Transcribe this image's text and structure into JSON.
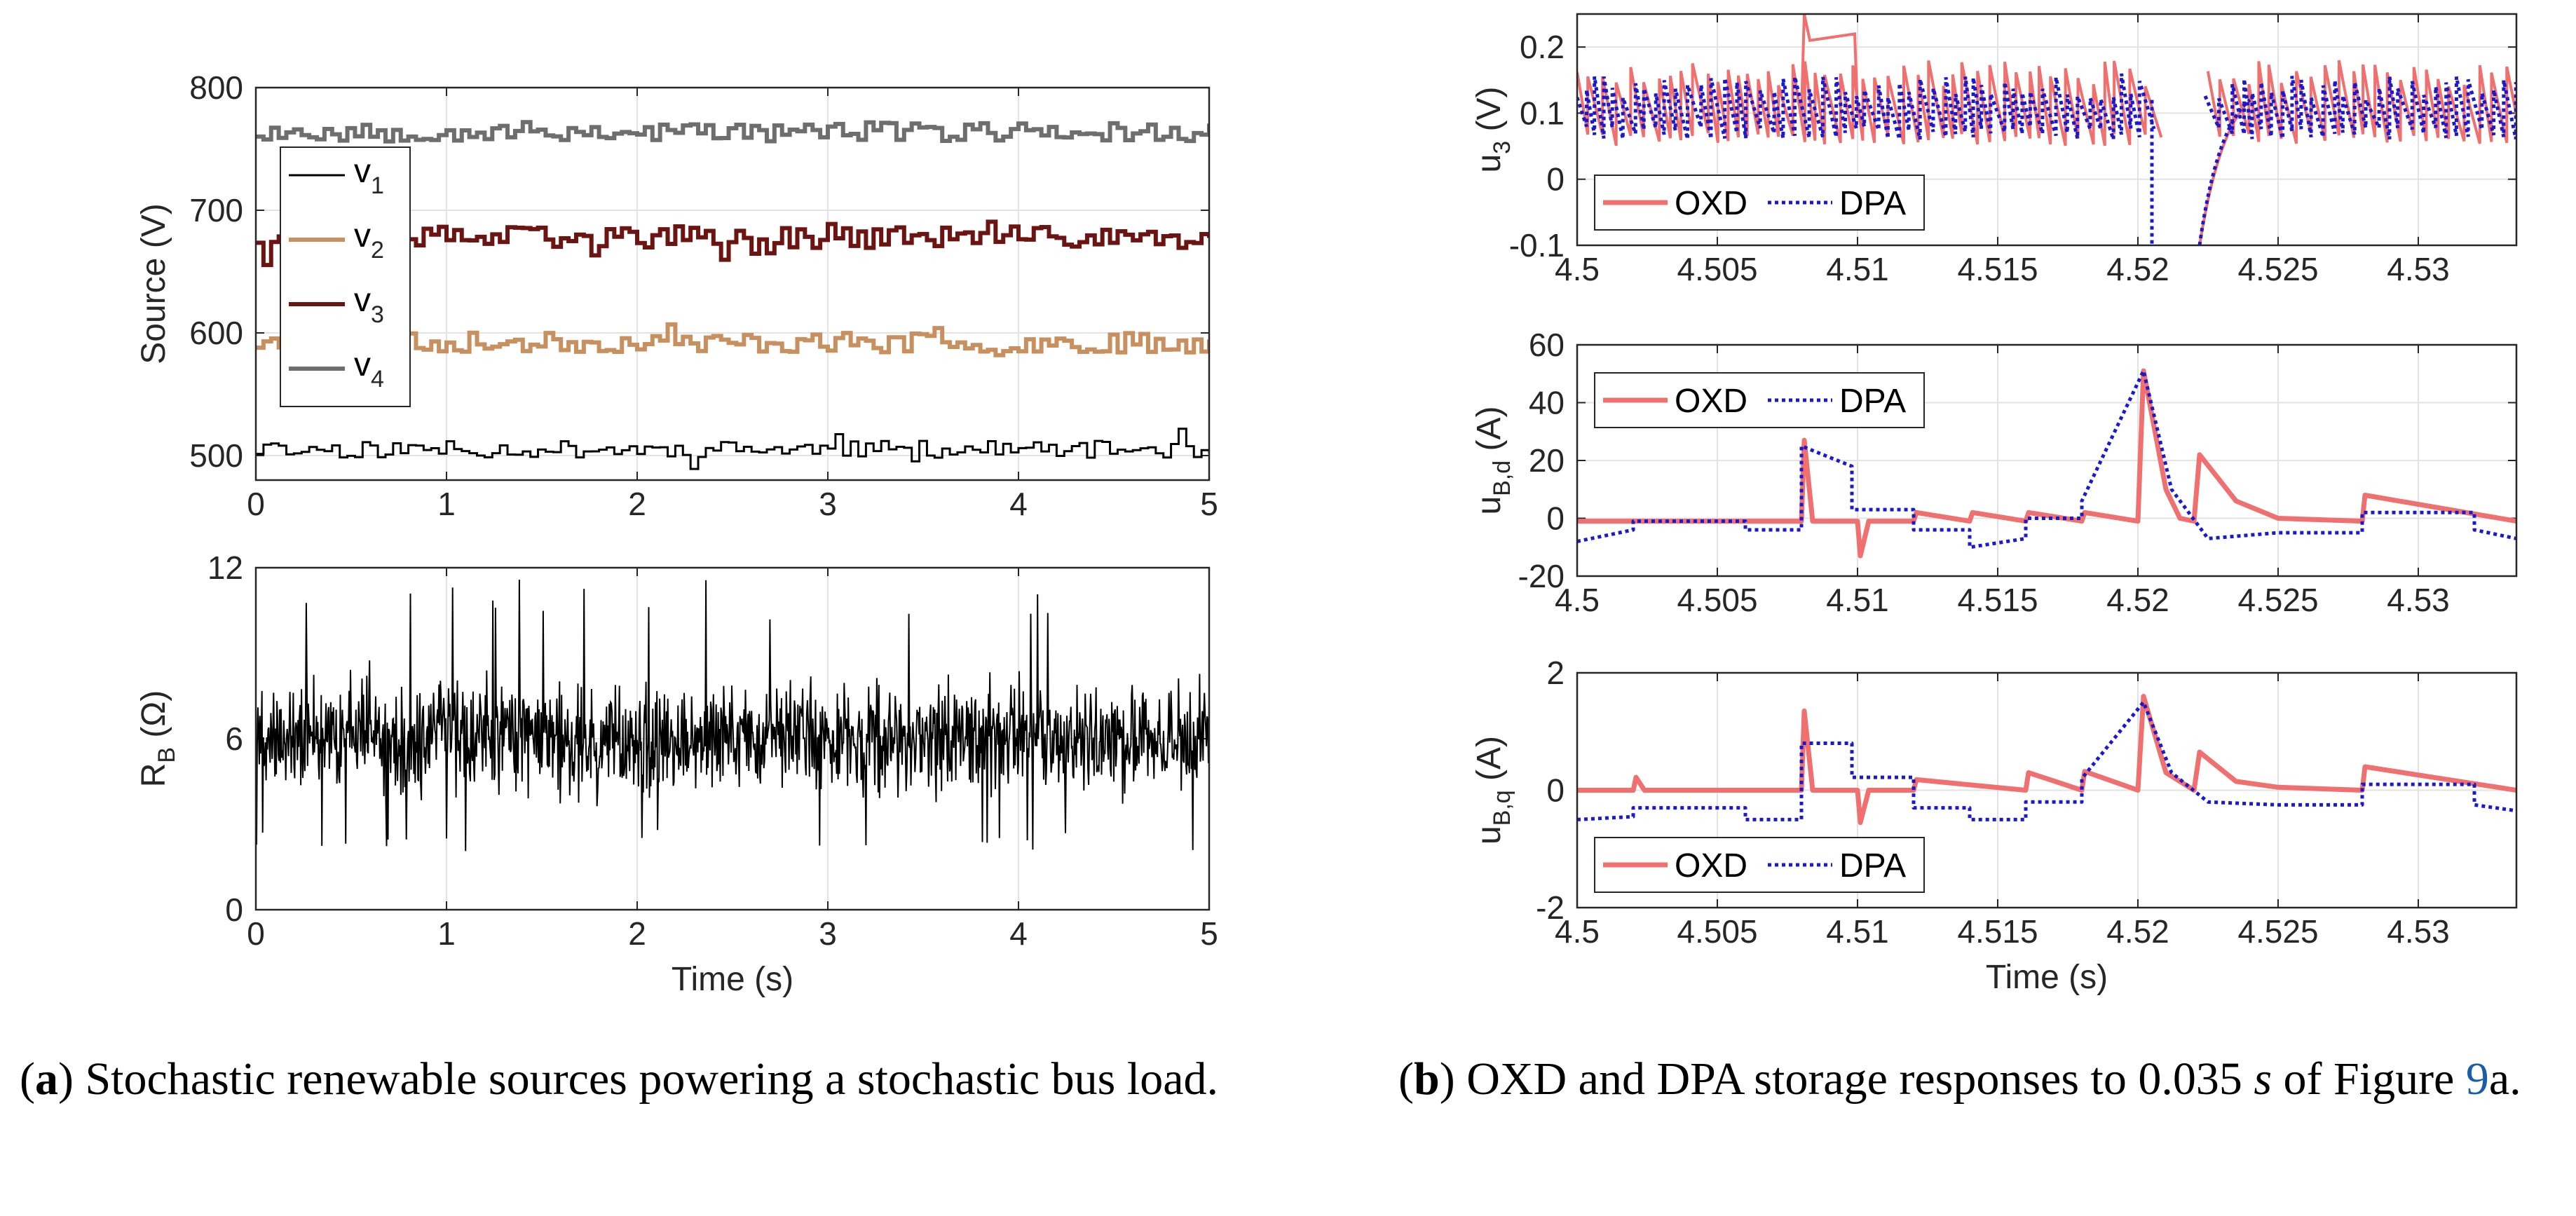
{
  "figure": {
    "caption_a": {
      "label": "a",
      "text": "Stochastic renewable sources powering a stochastic bus load."
    },
    "caption_b": {
      "label": "b",
      "text_pre": "OXD and DPA storage responses to 0.035",
      "unit": "s",
      "text_mid": "of Figure",
      "fig_ref": "9",
      "text_post": "a."
    }
  },
  "chart_data": [
    {
      "id": "a-top",
      "type": "line",
      "title": "",
      "xlabel": "",
      "ylabel": "Source (V)",
      "xlim": [
        0,
        5
      ],
      "ylim": [
        480,
        800
      ],
      "xticks": [
        0,
        1,
        2,
        3,
        4,
        5
      ],
      "yticks": [
        500,
        600,
        700,
        800
      ],
      "grid": true,
      "legend": "left-inside",
      "series": [
        {
          "name": "v1",
          "label_base": "v",
          "label_sub": "1",
          "color": "#000000",
          "width": 3,
          "mean": 505,
          "jitter": 7,
          "seed": 11
        },
        {
          "name": "v2",
          "label_base": "v",
          "label_sub": "2",
          "color": "#c8905f",
          "width": 6,
          "mean": 592,
          "jitter": 8,
          "seed": 23
        },
        {
          "name": "v3",
          "label_base": "v",
          "label_sub": "3",
          "color": "#6b1412",
          "width": 6,
          "mean": 678,
          "jitter": 9,
          "seed": 37
        },
        {
          "name": "v4",
          "label_base": "v",
          "label_sub": "4",
          "color": "#6e6e6e",
          "width": 6,
          "mean": 764,
          "jitter": 8,
          "seed": 53
        }
      ]
    },
    {
      "id": "a-bottom",
      "type": "line",
      "title": "",
      "xlabel": "Time (s)",
      "ylabel": "R",
      "ylabel_sub": "B",
      "ylabel_tail": " (Ω)",
      "xlim": [
        0,
        5
      ],
      "ylim": [
        0,
        12
      ],
      "xticks": [
        0,
        1,
        2,
        3,
        4,
        5
      ],
      "yticks": [
        0,
        6,
        12
      ],
      "grid": true,
      "series": [
        {
          "name": "RB",
          "color": "#000000",
          "width": 2,
          "mean": 6,
          "min": 2,
          "max": 11.6,
          "seed": 71
        }
      ]
    },
    {
      "id": "b-u3",
      "type": "line",
      "xlabel": "",
      "ylabel": "u",
      "ylabel_sub": "3",
      "ylabel_tail": " (V)",
      "xlim": [
        4.5,
        4.5335
      ],
      "ylim": [
        -0.1,
        0.25
      ],
      "xticks": [
        4.5,
        4.505,
        4.51,
        4.515,
        4.52,
        4.525,
        4.53
      ],
      "xticklabels": [
        "4.5",
        "4.505",
        "4.51",
        "4.515",
        "4.52",
        "4.525",
        "4.53"
      ],
      "yticks": [
        -0.1,
        0,
        0.1,
        0.2
      ],
      "yticklabels": [
        "-0.1",
        "0",
        "0.1",
        "0.2"
      ],
      "grid": true,
      "legend": "bottom-left",
      "series": [
        {
          "name": "OXD",
          "color": "#f07070",
          "style": "solid"
        },
        {
          "name": "DPA",
          "color": "#1a1acc",
          "style": "dotted"
        }
      ]
    },
    {
      "id": "b-ubd",
      "type": "line",
      "xlabel": "",
      "ylabel": "u",
      "ylabel_sub": "B,d",
      "ylabel_tail": " (A)",
      "xlim": [
        4.5,
        4.5335
      ],
      "ylim": [
        -20,
        60
      ],
      "xticks": [
        4.5,
        4.505,
        4.51,
        4.515,
        4.52,
        4.525,
        4.53
      ],
      "xticklabels": [
        "4.5",
        "4.505",
        "4.51",
        "4.515",
        "4.52",
        "4.525",
        "4.53"
      ],
      "yticks": [
        -20,
        0,
        20,
        40,
        60
      ],
      "yticklabels": [
        "-20",
        "0",
        "20",
        "40",
        "60"
      ],
      "grid": true,
      "legend": "top-left",
      "series": [
        {
          "name": "OXD",
          "color": "#f07070",
          "style": "solid",
          "x": [
            4.5,
            4.508,
            4.5081,
            4.5084,
            4.51,
            4.5101,
            4.5104,
            4.512,
            4.5121,
            4.514,
            4.5141,
            4.516,
            4.5161,
            4.518,
            4.5181,
            4.52,
            4.5202,
            4.521,
            4.5215,
            4.522,
            4.5222,
            4.5235,
            4.525,
            4.528,
            4.5281,
            4.5335
          ],
          "y": [
            -1,
            -1,
            27,
            -1,
            -1,
            -13,
            -1,
            -1,
            2,
            -1,
            2,
            -1,
            2,
            -1,
            2,
            -1,
            51,
            10,
            0,
            -1,
            22,
            6,
            0,
            -1,
            8,
            -1
          ]
        },
        {
          "name": "DPA",
          "color": "#1a1acc",
          "style": "dotted",
          "x": [
            4.5,
            4.502,
            4.502,
            4.506,
            4.506,
            4.508,
            4.508,
            4.5098,
            4.5098,
            4.512,
            4.512,
            4.514,
            4.514,
            4.516,
            4.516,
            4.518,
            4.518,
            4.5202,
            4.5212,
            4.5225,
            4.525,
            4.528,
            4.528,
            4.532,
            4.532,
            4.5335
          ],
          "y": [
            -8,
            -4,
            -1,
            -1,
            -4,
            -4,
            25,
            18,
            3,
            3,
            -4,
            -4,
            -10,
            -7,
            0,
            0,
            6,
            51,
            10,
            -7,
            -5,
            -5,
            2,
            2,
            -4,
            -7
          ]
        }
      ]
    },
    {
      "id": "b-ubq",
      "type": "line",
      "xlabel": "Time (s)",
      "ylabel": "u",
      "ylabel_sub": "B,q",
      "ylabel_tail": " (A)",
      "xlim": [
        4.5,
        4.5335
      ],
      "ylim": [
        -2,
        2
      ],
      "xticks": [
        4.5,
        4.505,
        4.51,
        4.515,
        4.52,
        4.525,
        4.53
      ],
      "xticklabels": [
        "4.5",
        "4.505",
        "4.51",
        "4.515",
        "4.52",
        "4.525",
        "4.53"
      ],
      "yticks": [
        -2,
        0,
        2
      ],
      "yticklabels": [
        "-2",
        "0",
        "2"
      ],
      "grid": true,
      "legend": "bottom-left",
      "series": [
        {
          "name": "OXD",
          "color": "#f07070",
          "style": "solid",
          "x": [
            4.5,
            4.502,
            4.5021,
            4.5024,
            4.508,
            4.5081,
            4.5084,
            4.51,
            4.5101,
            4.5104,
            4.512,
            4.5121,
            4.516,
            4.5161,
            4.518,
            4.5181,
            4.52,
            4.5202,
            4.521,
            4.522,
            4.5222,
            4.5235,
            4.525,
            4.528,
            4.5281,
            4.5335
          ],
          "y": [
            0,
            0,
            0.22,
            0,
            0,
            1.35,
            0,
            0,
            -0.55,
            0,
            0,
            0.18,
            0,
            0.3,
            0,
            0.32,
            0,
            1.6,
            0.3,
            0,
            0.65,
            0.15,
            0.05,
            0,
            0.4,
            0
          ]
        },
        {
          "name": "DPA",
          "color": "#1a1acc",
          "style": "dotted",
          "x": [
            4.5,
            4.502,
            4.502,
            4.506,
            4.506,
            4.508,
            4.508,
            4.5098,
            4.5098,
            4.512,
            4.512,
            4.514,
            4.514,
            4.516,
            4.516,
            4.518,
            4.518,
            4.5202,
            4.5212,
            4.5225,
            4.525,
            4.528,
            4.528,
            4.532,
            4.532,
            4.5335
          ],
          "y": [
            -0.5,
            -0.45,
            -0.3,
            -0.3,
            -0.5,
            -0.5,
            0.8,
            0.8,
            0.22,
            0.22,
            -0.3,
            -0.3,
            -0.5,
            -0.5,
            -0.2,
            -0.2,
            0.2,
            1.5,
            0.3,
            -0.2,
            -0.25,
            -0.25,
            0.1,
            0.1,
            -0.25,
            -0.35
          ]
        }
      ]
    }
  ]
}
